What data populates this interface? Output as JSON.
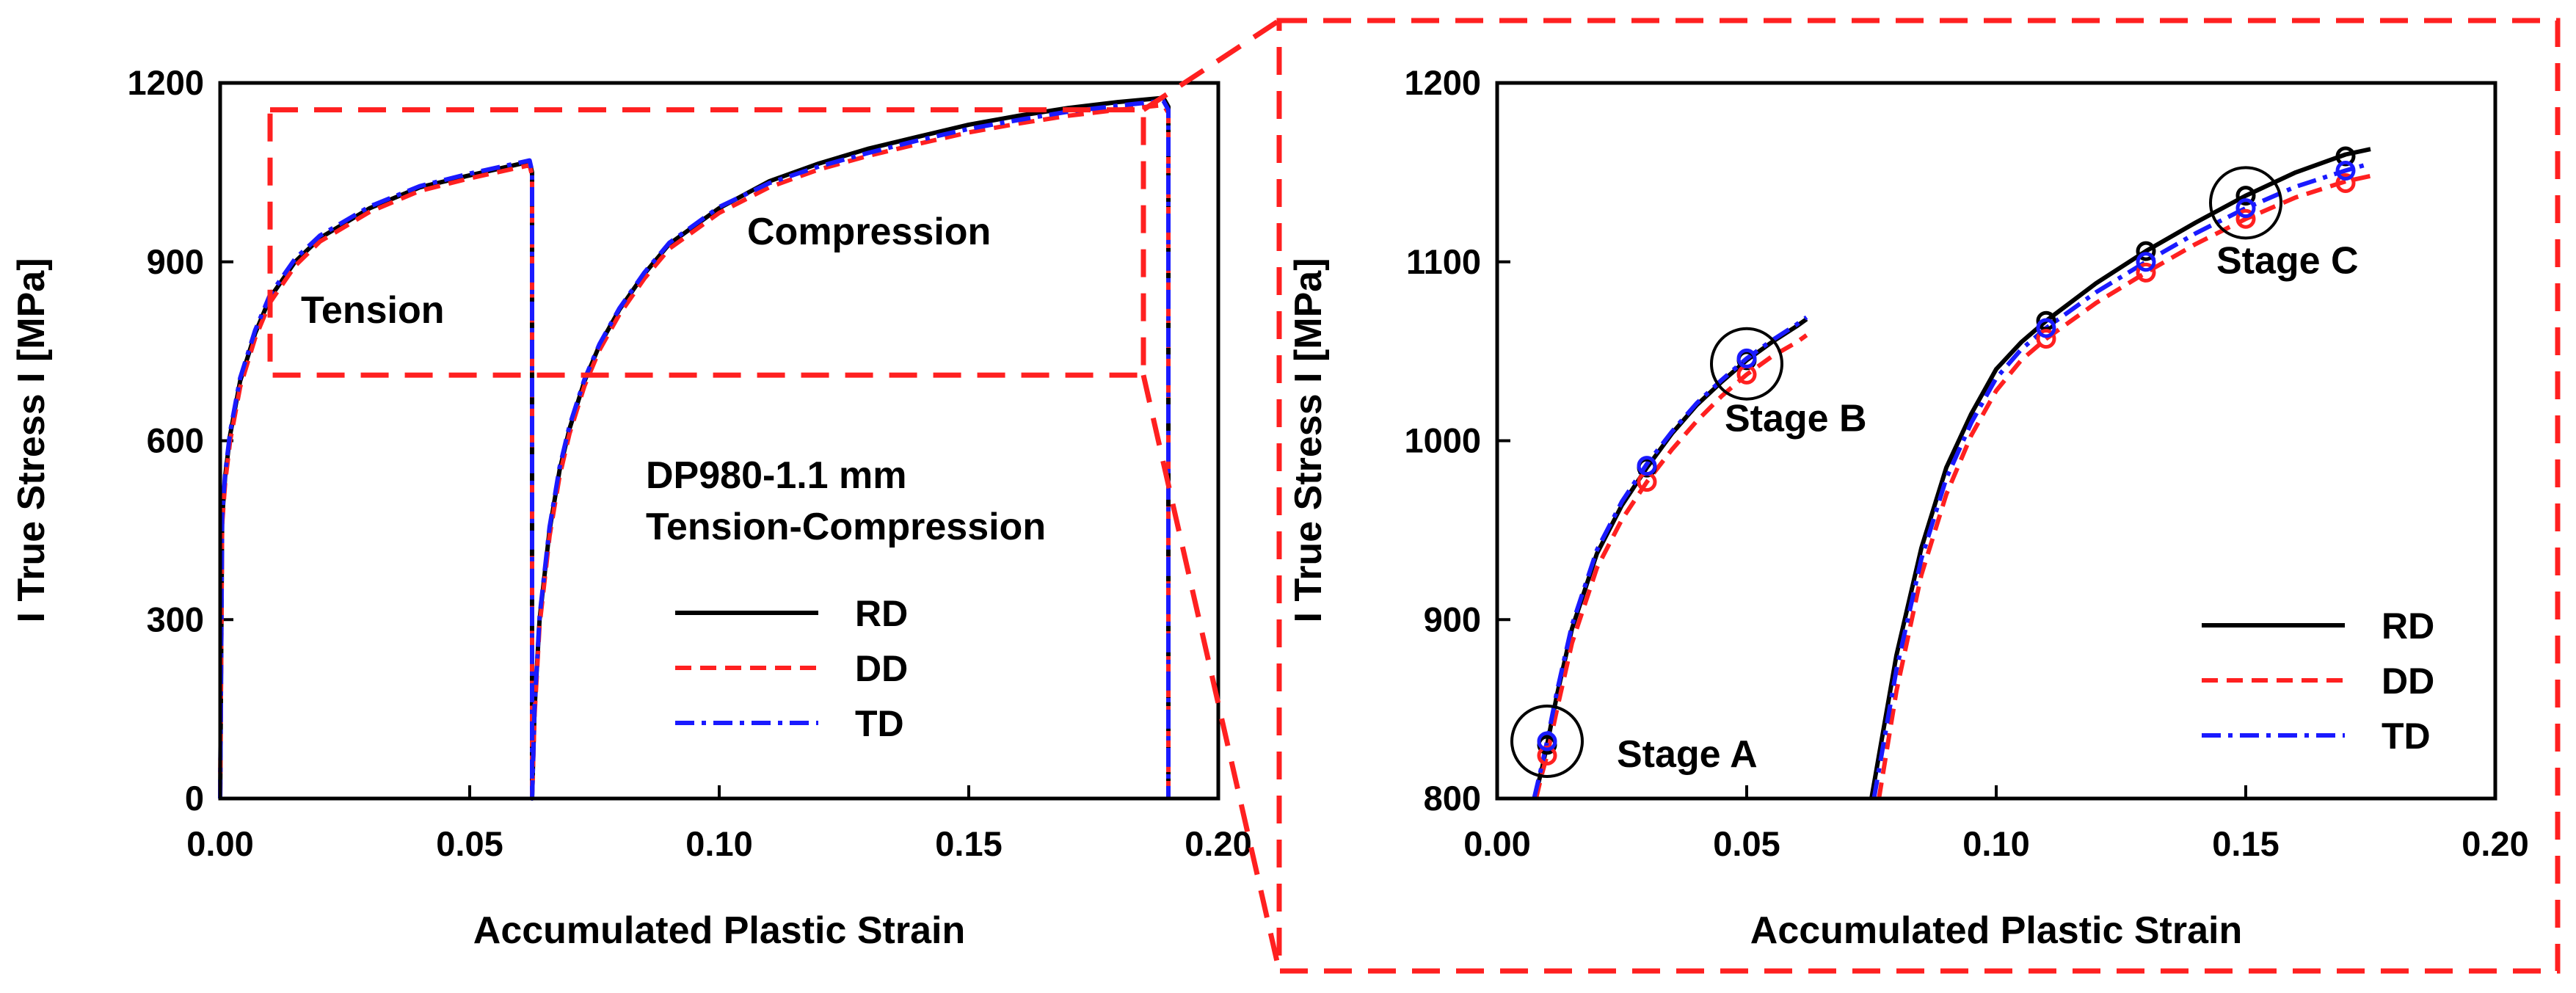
{
  "colors": {
    "rd": "#000000",
    "dd": "#ff2020",
    "td": "#1a1aff",
    "zoom_box": "#ff2020"
  },
  "legend": [
    {
      "key": "rd",
      "label": "RD",
      "dash": "solid"
    },
    {
      "key": "dd",
      "label": "DD",
      "dash": "dashed"
    },
    {
      "key": "td",
      "label": "TD",
      "dash": "dashdot"
    }
  ],
  "chart_data": [
    {
      "type": "line",
      "title": "",
      "xlabel": "Accumulated Plastic Strain",
      "ylabel": "I True Stress I [MPa]",
      "xlim": [
        0,
        0.2
      ],
      "ylim": [
        0,
        1200
      ],
      "xticks": [
        "0.00",
        "0.05",
        "0.10",
        "0.15",
        "0.20"
      ],
      "yticks": [
        "0",
        "300",
        "600",
        "900",
        "1200"
      ],
      "annotations": {
        "tension": "Tension",
        "compression": "Compression",
        "material": "DP980-1.1 mm",
        "test": "Tension-Compression"
      },
      "zoom_region": {
        "x": [
          0.01,
          0.185
        ],
        "y": [
          710,
          1155
        ]
      },
      "series": [
        {
          "name": "RD",
          "x": [
            0,
            0.0004,
            0.001,
            0.002,
            0.004,
            0.007,
            0.01,
            0.015,
            0.02,
            0.03,
            0.04,
            0.05,
            0.062,
            0.0625,
            0.0625,
            0.063,
            0.064,
            0.066,
            0.068,
            0.07,
            0.073,
            0.076,
            0.08,
            0.085,
            0.09,
            0.1,
            0.11,
            0.12,
            0.13,
            0.14,
            0.15,
            0.16,
            0.17,
            0.18,
            0.189,
            0.19,
            0.19
          ],
          "y": [
            0,
            470,
            540,
            610,
            700,
            780,
            840,
            900,
            940,
            990,
            1025,
            1045,
            1068,
            1050,
            0,
            150,
            300,
            450,
            550,
            620,
            700,
            760,
            820,
            880,
            930,
            990,
            1035,
            1065,
            1090,
            1110,
            1130,
            1145,
            1158,
            1168,
            1175,
            1160,
            0
          ]
        },
        {
          "name": "DD",
          "x": [
            0,
            0.0004,
            0.001,
            0.002,
            0.004,
            0.007,
            0.01,
            0.015,
            0.02,
            0.03,
            0.04,
            0.05,
            0.062,
            0.0625,
            0.0625,
            0.063,
            0.064,
            0.066,
            0.068,
            0.07,
            0.073,
            0.076,
            0.08,
            0.085,
            0.09,
            0.1,
            0.11,
            0.12,
            0.13,
            0.14,
            0.15,
            0.16,
            0.17,
            0.18,
            0.189,
            0.19,
            0.19
          ],
          "y": [
            0,
            460,
            530,
            600,
            690,
            772,
            832,
            893,
            934,
            984,
            1019,
            1040,
            1062,
            1045,
            0,
            140,
            290,
            440,
            540,
            612,
            692,
            752,
            812,
            872,
            922,
            982,
            1025,
            1055,
            1078,
            1098,
            1117,
            1132,
            1145,
            1155,
            1163,
            1150,
            0
          ]
        },
        {
          "name": "TD",
          "x": [
            0,
            0.0004,
            0.001,
            0.002,
            0.004,
            0.007,
            0.01,
            0.015,
            0.02,
            0.03,
            0.04,
            0.05,
            0.062,
            0.0625,
            0.0625,
            0.063,
            0.064,
            0.066,
            0.068,
            0.07,
            0.073,
            0.076,
            0.08,
            0.085,
            0.09,
            0.1,
            0.11,
            0.12,
            0.13,
            0.14,
            0.15,
            0.16,
            0.17,
            0.18,
            0.189,
            0.19,
            0.19
          ],
          "y": [
            0,
            475,
            545,
            615,
            705,
            785,
            845,
            905,
            944,
            993,
            1027,
            1048,
            1070,
            1052,
            0,
            155,
            305,
            455,
            555,
            625,
            703,
            762,
            822,
            882,
            932,
            992,
            1032,
            1060,
            1083,
            1104,
            1123,
            1138,
            1152,
            1162,
            1170,
            1155,
            0
          ]
        }
      ]
    },
    {
      "type": "line",
      "title": "",
      "xlabel": "Accumulated Plastic Strain",
      "ylabel": "I True Stress I [MPa]",
      "xlim": [
        0,
        0.2
      ],
      "ylim": [
        800,
        1200
      ],
      "xticks": [
        "0.00",
        "0.05",
        "0.10",
        "0.15",
        "0.20"
      ],
      "yticks": [
        "800",
        "900",
        "1000",
        "1100",
        "1200"
      ],
      "stages": [
        {
          "label": "Stage A",
          "x": 0.01,
          "y": 832
        },
        {
          "label": "Stage B",
          "x": 0.05,
          "y": 1043
        },
        {
          "label": "Stage C",
          "x": 0.15,
          "y": 1133
        }
      ],
      "series": [
        {
          "name": "RD",
          "segments": [
            {
              "x": [
                0.0075,
                0.009,
                0.01,
                0.012,
                0.015,
                0.02,
                0.025,
                0.03,
                0.035,
                0.04,
                0.045,
                0.05,
                0.055,
                0.06,
                0.062
              ],
              "y": [
                800,
                817,
                830,
                858,
                895,
                937,
                964,
                985,
                1004,
                1020,
                1033,
                1045,
                1055,
                1064,
                1068
              ]
            },
            {
              "x": [
                0.075,
                0.08,
                0.085,
                0.09,
                0.095,
                0.1,
                0.105,
                0.11,
                0.12,
                0.13,
                0.14,
                0.15,
                0.16,
                0.17,
                0.175
              ],
              "y": [
                800,
                880,
                940,
                985,
                1015,
                1040,
                1055,
                1067,
                1088,
                1106,
                1122,
                1137,
                1150,
                1160,
                1163
              ]
            }
          ],
          "markers": {
            "x": [
              0.01,
              0.03,
              0.05,
              0.11,
              0.13,
              0.15,
              0.17
            ],
            "y": [
              830,
              985,
              1045,
              1067,
              1106,
              1137,
              1159
            ]
          }
        },
        {
          "name": "DD",
          "segments": [
            {
              "x": [
                0.0078,
                0.009,
                0.01,
                0.012,
                0.015,
                0.02,
                0.025,
                0.03,
                0.035,
                0.04,
                0.045,
                0.05,
                0.055,
                0.06,
                0.062
              ],
              "y": [
                800,
                814,
                824,
                850,
                887,
                929,
                956,
                977,
                995,
                1011,
                1025,
                1037,
                1047,
                1055,
                1059
              ]
            },
            {
              "x": [
                0.0765,
                0.08,
                0.085,
                0.09,
                0.095,
                0.1,
                0.105,
                0.11,
                0.12,
                0.13,
                0.14,
                0.15,
                0.16,
                0.17,
                0.175
              ],
              "y": [
                800,
                860,
                925,
                970,
                1003,
                1028,
                1045,
                1057,
                1077,
                1094,
                1110,
                1124,
                1136,
                1145,
                1148
              ]
            }
          ],
          "markers": {
            "x": [
              0.01,
              0.03,
              0.05,
              0.11,
              0.13,
              0.15,
              0.17
            ],
            "y": [
              824,
              977,
              1037,
              1057,
              1094,
              1124,
              1144
            ]
          }
        },
        {
          "name": "TD",
          "segments": [
            {
              "x": [
                0.0074,
                0.009,
                0.01,
                0.012,
                0.015,
                0.02,
                0.025,
                0.03,
                0.035,
                0.04,
                0.045,
                0.05,
                0.055,
                0.06,
                0.062
              ],
              "y": [
                800,
                819,
                832,
                860,
                897,
                939,
                966,
                987,
                1005,
                1021,
                1034,
                1046,
                1056,
                1065,
                1069
              ]
            },
            {
              "x": [
                0.0755,
                0.08,
                0.085,
                0.09,
                0.095,
                0.1,
                0.105,
                0.11,
                0.12,
                0.13,
                0.14,
                0.15,
                0.16,
                0.17,
                0.175
              ],
              "y": [
                800,
                872,
                934,
                979,
                1010,
                1035,
                1051,
                1063,
                1083,
                1100,
                1116,
                1130,
                1142,
                1151,
                1155
              ]
            }
          ],
          "markers": {
            "x": [
              0.01,
              0.03,
              0.05,
              0.11,
              0.13,
              0.15,
              0.17
            ],
            "y": [
              832,
              986,
              1046,
              1063,
              1100,
              1130,
              1151
            ]
          }
        }
      ]
    }
  ]
}
